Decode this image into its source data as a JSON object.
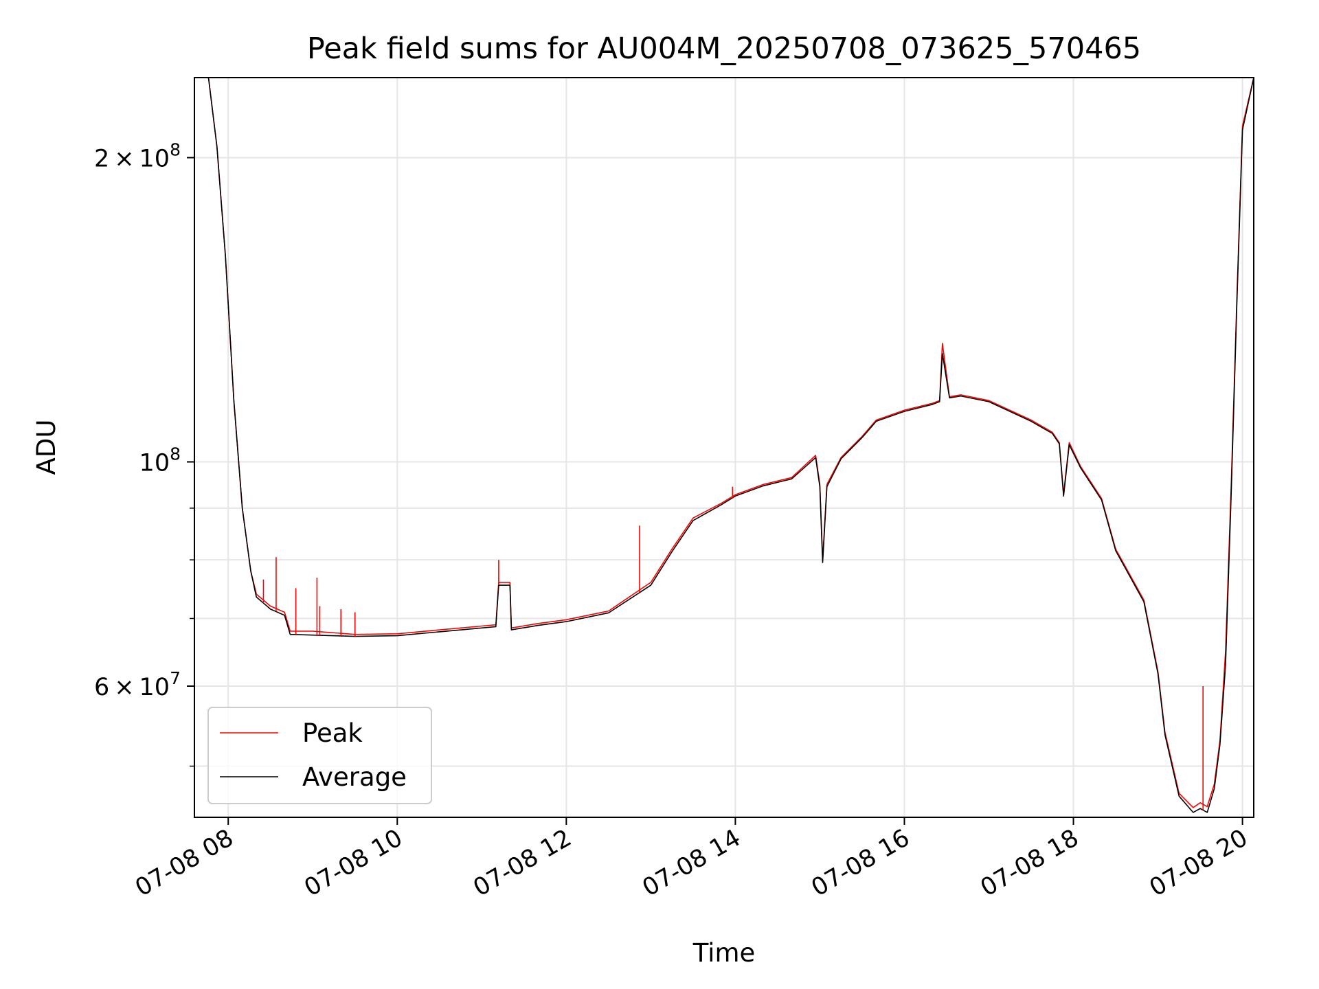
{
  "chart_data": {
    "type": "line",
    "title": "Peak field sums for AU004M_20250708_073625_570465",
    "xlabel": "Time",
    "ylabel": "ADU",
    "yscale": "log",
    "xlim": [
      "2025-07-08T07:36",
      "2025-07-08T20:08"
    ],
    "ylim": [
      44500000,
      240000000
    ],
    "grid": true,
    "legend_position": "lower-left",
    "x_ticks": [
      {
        "value": "2025-07-08T08:00",
        "label": "07-08 08"
      },
      {
        "value": "2025-07-08T10:00",
        "label": "07-08 10"
      },
      {
        "value": "2025-07-08T12:00",
        "label": "07-08 12"
      },
      {
        "value": "2025-07-08T14:00",
        "label": "07-08 14"
      },
      {
        "value": "2025-07-08T16:00",
        "label": "07-08 16"
      },
      {
        "value": "2025-07-08T18:00",
        "label": "07-08 18"
      },
      {
        "value": "2025-07-08T20:00",
        "label": "07-08 20"
      }
    ],
    "y_major_ticks": [
      {
        "value": 200000000,
        "base": "2",
        "exp": "8"
      },
      {
        "value": 100000000,
        "base": "10",
        "exp": "8"
      },
      {
        "value": 60000000,
        "base": "6",
        "exp": "7"
      }
    ],
    "y_minor_ticks": [
      50000000,
      70000000,
      80000000,
      90000000
    ],
    "series": [
      {
        "name": "Peak",
        "color": "#ff0000",
        "x": [
          "2025-07-08T07:36",
          "2025-07-08T07:46",
          "2025-07-08T07:52",
          "2025-07-08T07:58",
          "2025-07-08T08:04",
          "2025-07-08T08:10",
          "2025-07-08T08:16",
          "2025-07-08T08:20",
          "2025-07-08T08:30",
          "2025-07-08T08:40",
          "2025-07-08T08:44",
          "2025-07-08T09:00",
          "2025-07-08T09:30",
          "2025-07-08T10:00",
          "2025-07-08T10:30",
          "2025-07-08T11:00",
          "2025-07-08T11:10",
          "2025-07-08T11:12",
          "2025-07-08T11:20",
          "2025-07-08T11:21",
          "2025-07-08T11:40",
          "2025-07-08T12:00",
          "2025-07-08T12:30",
          "2025-07-08T13:00",
          "2025-07-08T13:15",
          "2025-07-08T13:30",
          "2025-07-08T13:50",
          "2025-07-08T14:00",
          "2025-07-08T14:20",
          "2025-07-08T14:40",
          "2025-07-08T14:57",
          "2025-07-08T15:00",
          "2025-07-08T15:02",
          "2025-07-08T15:05",
          "2025-07-08T15:15",
          "2025-07-08T15:30",
          "2025-07-08T15:40",
          "2025-07-08T16:00",
          "2025-07-08T16:20",
          "2025-07-08T16:25",
          "2025-07-08T16:27",
          "2025-07-08T16:32",
          "2025-07-08T16:40",
          "2025-07-08T17:00",
          "2025-07-08T17:30",
          "2025-07-08T17:45",
          "2025-07-08T17:50",
          "2025-07-08T17:53",
          "2025-07-08T17:57",
          "2025-07-08T18:05",
          "2025-07-08T18:20",
          "2025-07-08T18:30",
          "2025-07-08T18:50",
          "2025-07-08T19:00",
          "2025-07-08T19:05",
          "2025-07-08T19:15",
          "2025-07-08T19:25",
          "2025-07-08T19:30",
          "2025-07-08T19:35",
          "2025-07-08T19:40",
          "2025-07-08T19:44",
          "2025-07-08T19:48",
          "2025-07-08T19:52",
          "2025-07-08T19:56",
          "2025-07-08T20:00",
          "2025-07-08T20:08"
        ],
        "y": [
          240000000,
          240000000,
          205000000,
          160000000,
          115000000,
          90000000,
          78000000,
          74000000,
          72000000,
          71000000,
          68000000,
          68000000,
          67500000,
          67600000,
          68200000,
          68800000,
          69000000,
          76000000,
          76000000,
          68500000,
          69200000,
          69800000,
          71200000,
          76000000,
          82000000,
          88000000,
          91000000,
          92800000,
          95000000,
          96500000,
          101500000,
          95000000,
          80000000,
          95000000,
          101000000,
          106000000,
          110000000,
          112500000,
          114300000,
          115000000,
          131000000,
          116000000,
          116500000,
          115000000,
          110000000,
          107000000,
          104500000,
          93000000,
          104500000,
          99000000,
          92000000,
          82000000,
          73000000,
          62000000,
          54000000,
          47000000,
          45500000,
          46000000,
          45600000,
          48000000,
          53000000,
          65000000,
          95000000,
          145000000,
          215000000,
          240000000
        ]
      },
      {
        "name": "Average",
        "color": "#000000",
        "x": [
          "2025-07-08T07:36",
          "2025-07-08T07:46",
          "2025-07-08T07:52",
          "2025-07-08T07:58",
          "2025-07-08T08:04",
          "2025-07-08T08:10",
          "2025-07-08T08:16",
          "2025-07-08T08:20",
          "2025-07-08T08:30",
          "2025-07-08T08:40",
          "2025-07-08T08:44",
          "2025-07-08T09:00",
          "2025-07-08T09:30",
          "2025-07-08T10:00",
          "2025-07-08T10:30",
          "2025-07-08T11:00",
          "2025-07-08T11:10",
          "2025-07-08T11:12",
          "2025-07-08T11:20",
          "2025-07-08T11:21",
          "2025-07-08T11:40",
          "2025-07-08T12:00",
          "2025-07-08T12:30",
          "2025-07-08T13:00",
          "2025-07-08T13:15",
          "2025-07-08T13:30",
          "2025-07-08T13:50",
          "2025-07-08T14:00",
          "2025-07-08T14:20",
          "2025-07-08T14:40",
          "2025-07-08T14:57",
          "2025-07-08T15:00",
          "2025-07-08T15:02",
          "2025-07-08T15:05",
          "2025-07-08T15:15",
          "2025-07-08T15:30",
          "2025-07-08T15:40",
          "2025-07-08T16:00",
          "2025-07-08T16:20",
          "2025-07-08T16:25",
          "2025-07-08T16:27",
          "2025-07-08T16:32",
          "2025-07-08T16:40",
          "2025-07-08T17:00",
          "2025-07-08T17:30",
          "2025-07-08T17:45",
          "2025-07-08T17:50",
          "2025-07-08T17:53",
          "2025-07-08T17:57",
          "2025-07-08T18:05",
          "2025-07-08T18:20",
          "2025-07-08T18:30",
          "2025-07-08T18:50",
          "2025-07-08T19:00",
          "2025-07-08T19:05",
          "2025-07-08T19:15",
          "2025-07-08T19:25",
          "2025-07-08T19:30",
          "2025-07-08T19:35",
          "2025-07-08T19:40",
          "2025-07-08T19:44",
          "2025-07-08T19:48",
          "2025-07-08T19:52",
          "2025-07-08T19:56",
          "2025-07-08T20:00",
          "2025-07-08T20:08"
        ],
        "y": [
          240000000,
          240000000,
          205000000,
          160000000,
          115000000,
          90000000,
          78000000,
          73500000,
          71500000,
          70500000,
          67500000,
          67400000,
          67200000,
          67300000,
          67900000,
          68500000,
          68700000,
          75500000,
          75500000,
          68200000,
          68900000,
          69500000,
          70900000,
          75500000,
          81500000,
          87500000,
          90700000,
          92500000,
          94700000,
          96200000,
          101000000,
          94500000,
          79500000,
          94500000,
          100700000,
          105700000,
          109700000,
          112200000,
          114000000,
          114700000,
          128000000,
          115700000,
          116200000,
          114700000,
          109700000,
          106700000,
          104200000,
          92500000,
          104000000,
          98700000,
          91700000,
          81700000,
          72700000,
          61700000,
          53700000,
          46700000,
          45000000,
          45400000,
          45000000,
          47500000,
          52500000,
          63000000,
          93000000,
          143000000,
          213000000,
          240000000
        ]
      }
    ],
    "spikes": {
      "color": "#ff0000",
      "x": [
        "2025-07-08T08:25",
        "2025-07-08T08:34",
        "2025-07-08T08:48",
        "2025-07-08T09:03",
        "2025-07-08T09:05",
        "2025-07-08T09:20",
        "2025-07-08T09:30",
        "2025-07-08T11:12",
        "2025-07-08T12:52",
        "2025-07-08T13:58",
        "2025-07-08T19:32"
      ],
      "y": [
        76500000,
        80500000,
        75000000,
        76800000,
        72000000,
        71500000,
        71000000,
        80000000,
        86500000,
        94500000,
        60000000
      ]
    }
  },
  "legend": {
    "items": [
      {
        "label": "Peak",
        "color": "#ff0000"
      },
      {
        "label": "Average",
        "color": "#000000"
      }
    ]
  }
}
